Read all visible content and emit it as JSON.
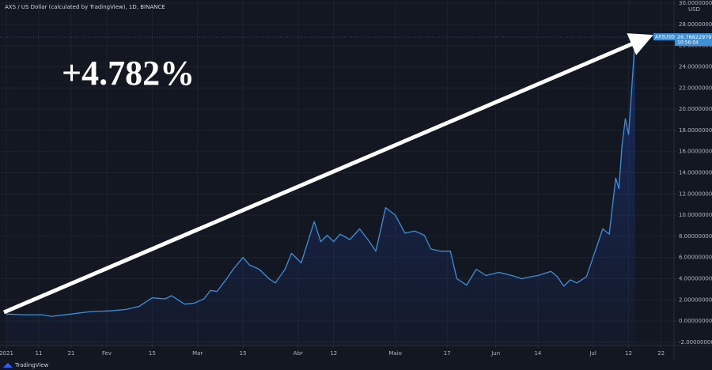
{
  "chart_data": {
    "type": "area",
    "title": "AXS / US Dollar (calculated by TradingView), 1D, BINANCE",
    "y_unit": "USD",
    "annotation": "+4.782%",
    "branding": "TradingView",
    "color": "#3d8fd8",
    "grid": true,
    "x": [
      "2021-01-01",
      "2021-01-06",
      "2021-01-12",
      "2021-01-15",
      "2021-01-21",
      "2021-01-27",
      "2021-02-02",
      "2021-02-07",
      "2021-02-11",
      "2021-02-15",
      "2021-02-19",
      "2021-02-21",
      "2021-02-25",
      "2021-02-28",
      "2021-03-03",
      "2021-03-05",
      "2021-03-07",
      "2021-03-10",
      "2021-03-12",
      "2021-03-15",
      "2021-03-17",
      "2021-03-20",
      "2021-03-23",
      "2021-03-25",
      "2021-03-28",
      "2021-03-30",
      "2021-04-02",
      "2021-04-06",
      "2021-04-08",
      "2021-04-10",
      "2021-04-12",
      "2021-04-14",
      "2021-04-17",
      "2021-04-20",
      "2021-04-23",
      "2021-04-25",
      "2021-04-28",
      "2021-05-01",
      "2021-05-04",
      "2021-05-07",
      "2021-05-10",
      "2021-05-12",
      "2021-05-15",
      "2021-05-18",
      "2021-05-20",
      "2021-05-23",
      "2021-05-26",
      "2021-05-29",
      "2021-06-02",
      "2021-06-06",
      "2021-06-09",
      "2021-06-12",
      "2021-06-14",
      "2021-06-18",
      "2021-06-20",
      "2021-06-22",
      "2021-06-24",
      "2021-06-26",
      "2021-06-29",
      "2021-07-01",
      "2021-07-04",
      "2021-07-06",
      "2021-07-08",
      "2021-07-09",
      "2021-07-10",
      "2021-07-11",
      "2021-07-12",
      "2021-07-13",
      "2021-07-14"
    ],
    "values": [
      0.67,
      0.6,
      0.6,
      0.45,
      0.67,
      0.9,
      0.97,
      1.1,
      1.4,
      2.2,
      2.1,
      2.4,
      1.6,
      1.7,
      2.1,
      2.9,
      2.8,
      4.0,
      4.9,
      6.0,
      5.3,
      4.9,
      4.0,
      3.6,
      4.9,
      6.4,
      5.5,
      9.4,
      7.5,
      8.1,
      7.5,
      8.2,
      7.7,
      8.7,
      7.5,
      6.6,
      10.7,
      10.0,
      8.3,
      8.5,
      8.1,
      6.8,
      6.6,
      6.6,
      4.0,
      3.4,
      4.9,
      4.3,
      4.6,
      4.3,
      4.0,
      4.2,
      4.3,
      4.7,
      4.2,
      3.3,
      3.9,
      3.6,
      4.2,
      6.0,
      8.7,
      8.2,
      13.5,
      12.5,
      16.7,
      19.1,
      17.6,
      22.1,
      26.78822979
    ],
    "last_price": {
      "symbol": "AXSUSD",
      "label": "26.78822979",
      "countdown": "10:56:04"
    },
    "xlim": [
      "2021-01-01",
      "2021-07-26"
    ],
    "xticks": [
      {
        "value": "2021-01-01",
        "label": "2021"
      },
      {
        "value": "2021-01-11",
        "label": "11"
      },
      {
        "value": "2021-01-21",
        "label": "21"
      },
      {
        "value": "2021-02-01",
        "label": "Fev"
      },
      {
        "value": "2021-02-15",
        "label": "15"
      },
      {
        "value": "2021-03-01",
        "label": "Mar"
      },
      {
        "value": "2021-03-15",
        "label": "15"
      },
      {
        "value": "2021-04-01",
        "label": "Abr"
      },
      {
        "value": "2021-04-12",
        "label": "12"
      },
      {
        "value": "2021-05-01",
        "label": "Maio"
      },
      {
        "value": "2021-05-17",
        "label": "17"
      },
      {
        "value": "2021-06-01",
        "label": "Jun"
      },
      {
        "value": "2021-06-14",
        "label": "14"
      },
      {
        "value": "2021-07-01",
        "label": "Jul"
      },
      {
        "value": "2021-07-12",
        "label": "12"
      },
      {
        "value": "2021-07-22",
        "label": "22"
      }
    ],
    "ylim": [
      -2.3,
      30.3
    ],
    "yticks": [
      {
        "value": -2,
        "label": "-2.00000000"
      },
      {
        "value": 0,
        "label": "0.00000000"
      },
      {
        "value": 2,
        "label": "2.00000000"
      },
      {
        "value": 4,
        "label": "4.00000000"
      },
      {
        "value": 6,
        "label": "6.00000000"
      },
      {
        "value": 8,
        "label": "8.00000000"
      },
      {
        "value": 10,
        "label": "10.00000000"
      },
      {
        "value": 12,
        "label": "12.00000000"
      },
      {
        "value": 14,
        "label": "14.00000000"
      },
      {
        "value": 16,
        "label": "16.00000000"
      },
      {
        "value": 18,
        "label": "18.00000000"
      },
      {
        "value": 20,
        "label": "20.00000000"
      },
      {
        "value": 22,
        "label": "22.00000000"
      },
      {
        "value": 24,
        "label": "24.00000000"
      },
      {
        "value": 26,
        "label": "26.00000000"
      },
      {
        "value": 28,
        "label": "28.00000000"
      },
      {
        "value": 30,
        "label": "30.00000000"
      }
    ]
  }
}
